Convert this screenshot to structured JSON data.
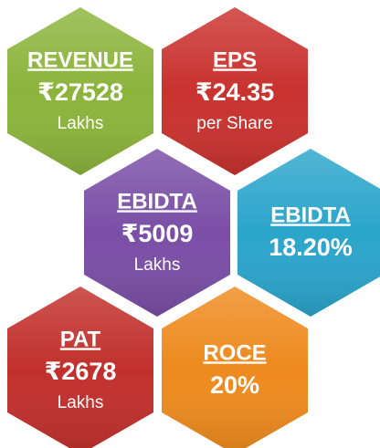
{
  "tiles": [
    {
      "label": "REVENUE",
      "value": "₹27528",
      "unit": "Lakhs",
      "color": "#8cb43c"
    },
    {
      "label": "EPS",
      "value": "₹24.35",
      "unit": "per Share",
      "color": "#c9322e"
    },
    {
      "label": "EBIDTA",
      "value": "₹5009",
      "unit": "Lakhs",
      "color": "#7a4ea6"
    },
    {
      "label": "EBIDTA",
      "value": "18.20%",
      "color": "#2ba5cb"
    },
    {
      "label": "PAT",
      "value": "₹2678",
      "unit": "Lakhs",
      "color": "#c1302c"
    },
    {
      "label": "ROCE",
      "value": "20%",
      "color": "#ee8a1e"
    }
  ]
}
